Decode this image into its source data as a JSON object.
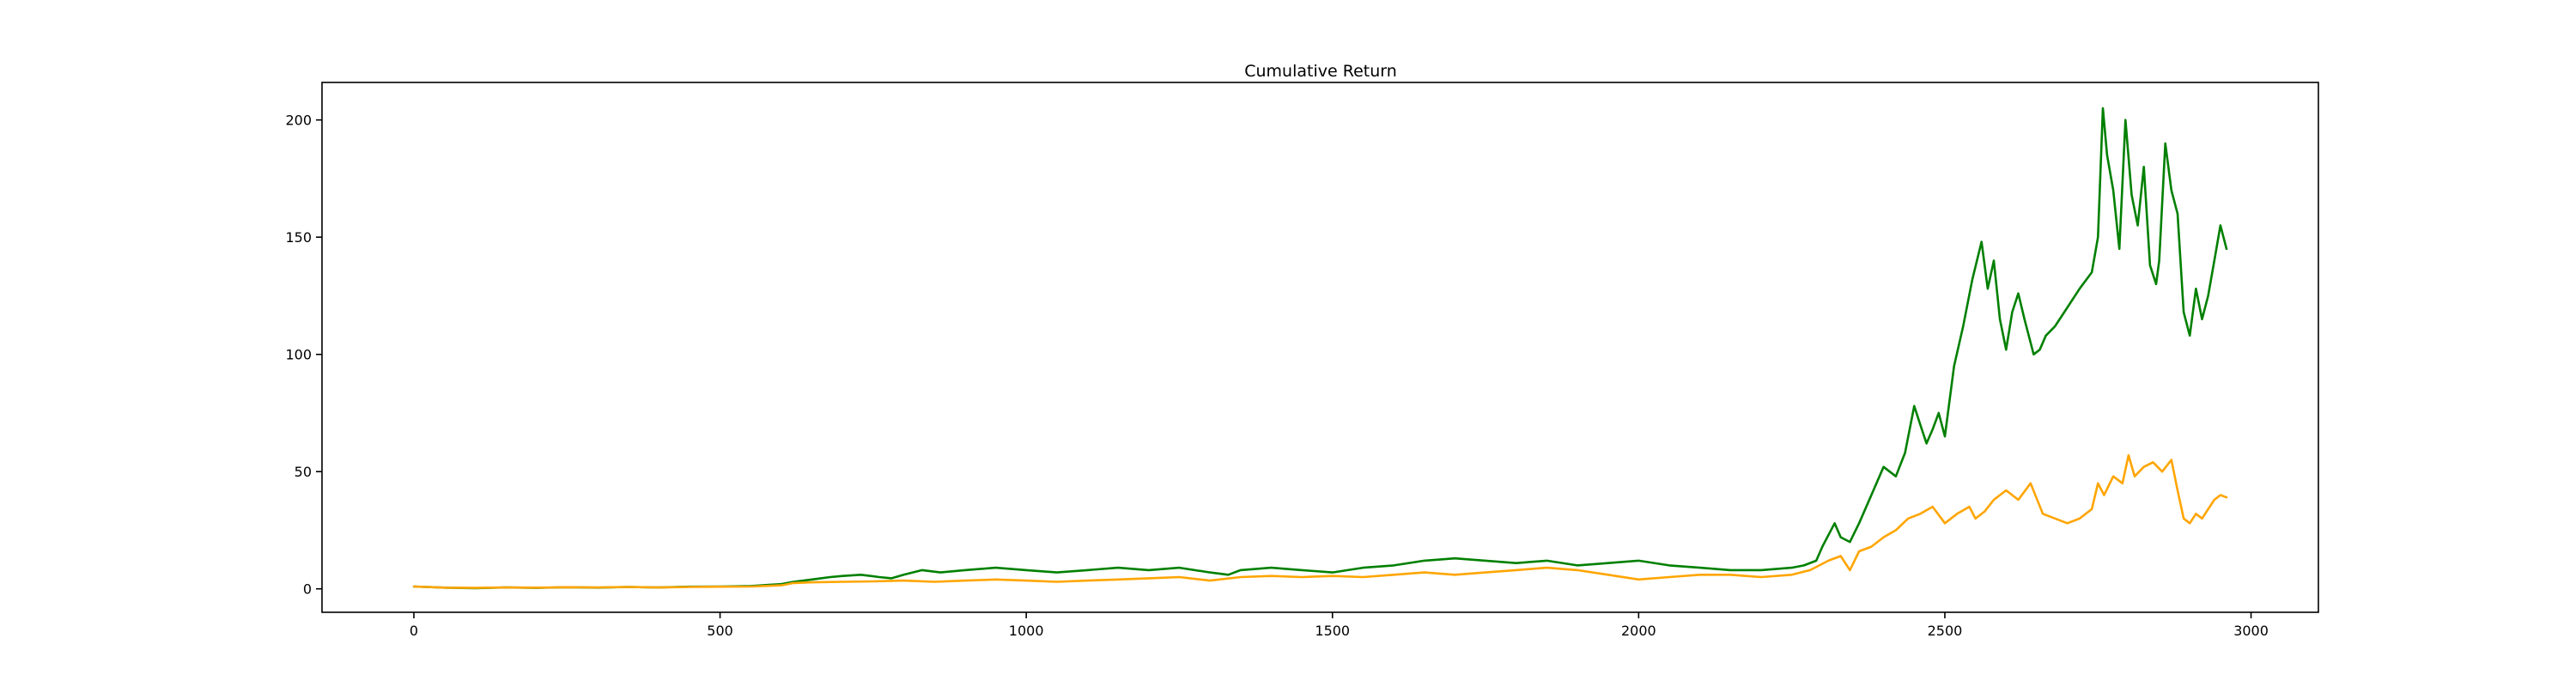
{
  "chart_data": {
    "type": "line",
    "title": "Cumulative Return",
    "xlabel": "",
    "ylabel": "",
    "xlim": [
      -150,
      3110
    ],
    "ylim": [
      -10,
      216
    ],
    "xticks": [
      0,
      500,
      1000,
      1500,
      2000,
      2500,
      3000
    ],
    "yticks": [
      0,
      50,
      100,
      150,
      200
    ],
    "xtick_labels": [
      "0",
      "500",
      "1000",
      "1500",
      "2000",
      "2500",
      "3000"
    ],
    "ytick_labels": [
      "0",
      "50",
      "100",
      "150",
      "200"
    ],
    "grid": false,
    "legend": "none",
    "series": [
      {
        "color": "#008000",
        "x": [
          0,
          50,
          100,
          150,
          200,
          250,
          300,
          350,
          400,
          450,
          500,
          550,
          600,
          620,
          650,
          680,
          700,
          730,
          760,
          780,
          800,
          830,
          860,
          900,
          950,
          1000,
          1050,
          1100,
          1150,
          1200,
          1250,
          1300,
          1330,
          1350,
          1400,
          1450,
          1500,
          1550,
          1600,
          1650,
          1700,
          1750,
          1800,
          1850,
          1900,
          1950,
          2000,
          2050,
          2100,
          2150,
          2200,
          2250,
          2270,
          2290,
          2300,
          2320,
          2330,
          2345,
          2360,
          2380,
          2400,
          2420,
          2435,
          2450,
          2460,
          2470,
          2480,
          2490,
          2500,
          2515,
          2530,
          2545,
          2560,
          2570,
          2580,
          2590,
          2600,
          2610,
          2620,
          2630,
          2645,
          2655,
          2665,
          2680,
          2700,
          2720,
          2740,
          2750,
          2758,
          2765,
          2775,
          2785,
          2795,
          2805,
          2815,
          2825,
          2835,
          2845,
          2850,
          2860,
          2870,
          2880,
          2890,
          2900,
          2910,
          2920,
          2930,
          2940,
          2950,
          2960
        ],
        "y": [
          1,
          0.5,
          0.3,
          0.6,
          0.4,
          0.7,
          0.5,
          0.8,
          0.6,
          0.9,
          1,
          1.2,
          2,
          3,
          4,
          5,
          5.5,
          6,
          5,
          4.5,
          6,
          8,
          7,
          8,
          9,
          8,
          7,
          8,
          9,
          8,
          9,
          7,
          6,
          8,
          9,
          8,
          7,
          9,
          10,
          12,
          13,
          12,
          11,
          12,
          10,
          11,
          12,
          10,
          9,
          8,
          8,
          9,
          10,
          12,
          18,
          28,
          22,
          20,
          28,
          40,
          52,
          48,
          58,
          78,
          70,
          62,
          68,
          75,
          65,
          95,
          112,
          132,
          148,
          128,
          140,
          115,
          102,
          118,
          126,
          115,
          100,
          102,
          108,
          112,
          120,
          128,
          135,
          150,
          205,
          185,
          170,
          145,
          200,
          168,
          155,
          180,
          138,
          130,
          140,
          190,
          170,
          160,
          118,
          108,
          128,
          115,
          125,
          140,
          155,
          145
        ]
      },
      {
        "color": "#ffa500",
        "x": [
          0,
          50,
          100,
          150,
          200,
          250,
          300,
          350,
          400,
          450,
          500,
          550,
          600,
          620,
          650,
          700,
          750,
          800,
          850,
          900,
          950,
          1000,
          1050,
          1100,
          1150,
          1200,
          1250,
          1300,
          1350,
          1400,
          1450,
          1500,
          1550,
          1600,
          1650,
          1700,
          1750,
          1800,
          1850,
          1900,
          1950,
          2000,
          2050,
          2100,
          2150,
          2200,
          2250,
          2280,
          2310,
          2330,
          2345,
          2360,
          2380,
          2400,
          2420,
          2440,
          2460,
          2480,
          2500,
          2520,
          2540,
          2550,
          2565,
          2580,
          2600,
          2620,
          2640,
          2660,
          2680,
          2700,
          2720,
          2740,
          2750,
          2760,
          2775,
          2790,
          2800,
          2810,
          2825,
          2840,
          2855,
          2870,
          2880,
          2890,
          2900,
          2910,
          2920,
          2930,
          2940,
          2950,
          2960
        ],
        "y": [
          1,
          0.5,
          0.4,
          0.6,
          0.5,
          0.7,
          0.6,
          0.8,
          0.6,
          0.8,
          0.9,
          1,
          1.5,
          2.5,
          2.8,
          3,
          3.2,
          3.5,
          3,
          3.5,
          4,
          3.5,
          3,
          3.5,
          4,
          4.5,
          5,
          3.5,
          5,
          5.5,
          5,
          5.5,
          5,
          6,
          7,
          6,
          7,
          8,
          9,
          8,
          6,
          4,
          5,
          6,
          6,
          5,
          6,
          8,
          12,
          14,
          8,
          16,
          18,
          22,
          25,
          30,
          32,
          35,
          28,
          32,
          35,
          30,
          33,
          38,
          42,
          38,
          45,
          32,
          30,
          28,
          30,
          34,
          45,
          40,
          48,
          45,
          57,
          48,
          52,
          54,
          50,
          55,
          42,
          30,
          28,
          32,
          30,
          34,
          38,
          40,
          39
        ]
      }
    ]
  }
}
